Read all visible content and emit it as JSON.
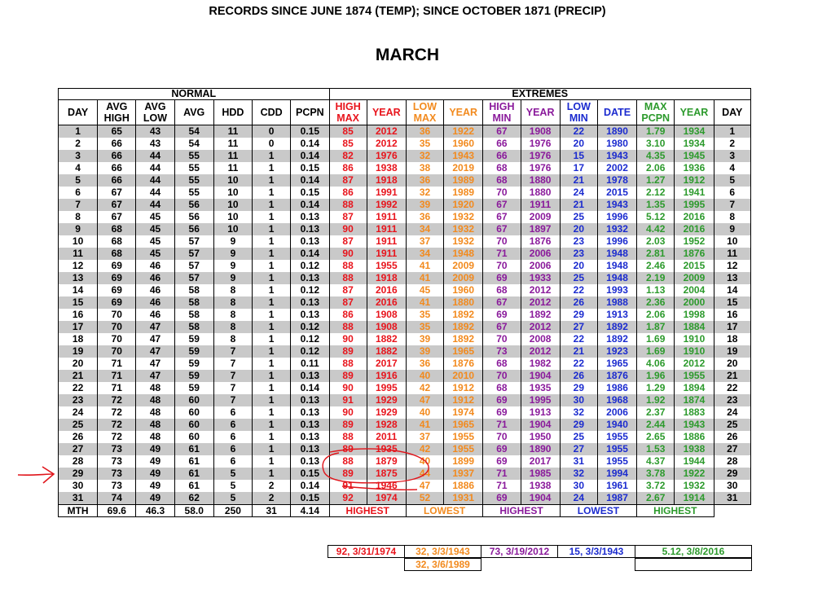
{
  "header": {
    "title": "RECORDS SINCE JUNE 1874 (TEMP); SINCE OCTOBER 1871 (PRECIP)",
    "month": "MARCH"
  },
  "groups": {
    "normal": "NORMAL",
    "extremes": "EXTREMES"
  },
  "columns": {
    "day": "DAY",
    "avg_high": [
      "AVG",
      "HIGH"
    ],
    "avg_low": [
      "AVG",
      "LOW"
    ],
    "avg": "AVG",
    "hdd": "HDD",
    "cdd": "CDD",
    "pcpn": "PCPN",
    "high_max": [
      "HIGH",
      "MAX"
    ],
    "year1": "YEAR",
    "low_max": [
      "LOW",
      "MAX"
    ],
    "year2": "YEAR",
    "high_min": [
      "HIGH",
      "MIN"
    ],
    "year3": "YEAR",
    "low_min": [
      "LOW",
      "MIN"
    ],
    "date": "DATE",
    "max_pcpn": [
      "MAX",
      "PCPN"
    ],
    "year4": "YEAR",
    "day2": "DAY"
  },
  "rows": [
    [
      "1",
      "65",
      "43",
      "54",
      "11",
      "0",
      "0.15",
      "85",
      "2012",
      "36",
      "1922",
      "67",
      "1908",
      "22",
      "1890",
      "1.79",
      "1934",
      "1"
    ],
    [
      "2",
      "66",
      "43",
      "54",
      "11",
      "0",
      "0.14",
      "85",
      "2012",
      "35",
      "1960",
      "66",
      "1976",
      "20",
      "1980",
      "3.10",
      "1934",
      "2"
    ],
    [
      "3",
      "66",
      "44",
      "55",
      "11",
      "1",
      "0.14",
      "82",
      "1976",
      "32",
      "1943",
      "66",
      "1976",
      "15",
      "1943",
      "4.35",
      "1945",
      "3"
    ],
    [
      "4",
      "66",
      "44",
      "55",
      "11",
      "1",
      "0.15",
      "86",
      "1938",
      "38",
      "2019",
      "68",
      "1976",
      "17",
      "2002",
      "2.06",
      "1936",
      "4"
    ],
    [
      "5",
      "66",
      "44",
      "55",
      "10",
      "1",
      "0.14",
      "87",
      "1918",
      "36",
      "1989",
      "68",
      "1880",
      "21",
      "1978",
      "1.27",
      "1912",
      "5"
    ],
    [
      "6",
      "67",
      "44",
      "55",
      "10",
      "1",
      "0.15",
      "86",
      "1991",
      "32",
      "1989",
      "70",
      "1880",
      "24",
      "2015",
      "2.12",
      "1941",
      "6"
    ],
    [
      "7",
      "67",
      "44",
      "56",
      "10",
      "1",
      "0.14",
      "88",
      "1992",
      "39",
      "1920",
      "67",
      "1911",
      "21",
      "1943",
      "1.35",
      "1995",
      "7"
    ],
    [
      "8",
      "67",
      "45",
      "56",
      "10",
      "1",
      "0.13",
      "87",
      "1911",
      "36",
      "1932",
      "67",
      "2009",
      "25",
      "1996",
      "5.12",
      "2016",
      "8"
    ],
    [
      "9",
      "68",
      "45",
      "56",
      "10",
      "1",
      "0.13",
      "90",
      "1911",
      "34",
      "1932",
      "67",
      "1897",
      "20",
      "1932",
      "4.42",
      "2016",
      "9"
    ],
    [
      "10",
      "68",
      "45",
      "57",
      "9",
      "1",
      "0.13",
      "87",
      "1911",
      "37",
      "1932",
      "70",
      "1876",
      "23",
      "1996",
      "2.03",
      "1952",
      "10"
    ],
    [
      "11",
      "68",
      "45",
      "57",
      "9",
      "1",
      "0.14",
      "90",
      "1911",
      "34",
      "1948",
      "71",
      "2006",
      "23",
      "1948",
      "2.81",
      "1876",
      "11"
    ],
    [
      "12",
      "69",
      "46",
      "57",
      "9",
      "1",
      "0.12",
      "88",
      "1955",
      "41",
      "2009",
      "70",
      "2006",
      "20",
      "1948",
      "2.46",
      "2015",
      "12"
    ],
    [
      "13",
      "69",
      "46",
      "57",
      "9",
      "1",
      "0.13",
      "88",
      "1918",
      "41",
      "2009",
      "69",
      "1933",
      "25",
      "1948",
      "2.19",
      "2009",
      "13"
    ],
    [
      "14",
      "69",
      "46",
      "58",
      "8",
      "1",
      "0.12",
      "87",
      "2016",
      "45",
      "1960",
      "68",
      "2012",
      "22",
      "1993",
      "1.13",
      "2004",
      "14"
    ],
    [
      "15",
      "69",
      "46",
      "58",
      "8",
      "1",
      "0.13",
      "87",
      "2016",
      "41",
      "1880",
      "67",
      "2012",
      "26",
      "1988",
      "2.36",
      "2000",
      "15"
    ],
    [
      "16",
      "70",
      "46",
      "58",
      "8",
      "1",
      "0.13",
      "86",
      "1908",
      "35",
      "1892",
      "69",
      "1892",
      "29",
      "1913",
      "2.06",
      "1998",
      "16"
    ],
    [
      "17",
      "70",
      "47",
      "58",
      "8",
      "1",
      "0.12",
      "88",
      "1908",
      "35",
      "1892",
      "67",
      "2012",
      "27",
      "1892",
      "1.87",
      "1884",
      "17"
    ],
    [
      "18",
      "70",
      "47",
      "59",
      "8",
      "1",
      "0.12",
      "90",
      "1882",
      "39",
      "1892",
      "70",
      "2008",
      "22",
      "1892",
      "1.69",
      "1910",
      "18"
    ],
    [
      "19",
      "70",
      "47",
      "59",
      "7",
      "1",
      "0.12",
      "89",
      "1882",
      "39",
      "1965",
      "73",
      "2012",
      "21",
      "1923",
      "1.69",
      "1910",
      "19"
    ],
    [
      "20",
      "71",
      "47",
      "59",
      "7",
      "1",
      "0.11",
      "88",
      "2017",
      "36",
      "1876",
      "68",
      "1982",
      "22",
      "1965",
      "4.06",
      "2012",
      "20"
    ],
    [
      "21",
      "71",
      "47",
      "59",
      "7",
      "1",
      "0.13",
      "89",
      "1916",
      "40",
      "2010",
      "70",
      "1904",
      "26",
      "1876",
      "1.96",
      "1955",
      "21"
    ],
    [
      "22",
      "71",
      "48",
      "59",
      "7",
      "1",
      "0.14",
      "90",
      "1995",
      "42",
      "1912",
      "68",
      "1935",
      "29",
      "1986",
      "1.29",
      "1894",
      "22"
    ],
    [
      "23",
      "72",
      "48",
      "60",
      "7",
      "1",
      "0.13",
      "91",
      "1929",
      "47",
      "1912",
      "69",
      "1995",
      "30",
      "1968",
      "1.92",
      "1874",
      "23"
    ],
    [
      "24",
      "72",
      "48",
      "60",
      "6",
      "1",
      "0.13",
      "90",
      "1929",
      "40",
      "1974",
      "69",
      "1913",
      "32",
      "2006",
      "2.37",
      "1883",
      "24"
    ],
    [
      "25",
      "72",
      "48",
      "60",
      "6",
      "1",
      "0.13",
      "89",
      "1928",
      "41",
      "1965",
      "71",
      "1904",
      "29",
      "1940",
      "2.44",
      "1943",
      "25"
    ],
    [
      "26",
      "72",
      "48",
      "60",
      "6",
      "1",
      "0.13",
      "88",
      "2011",
      "37",
      "1955",
      "70",
      "1950",
      "25",
      "1955",
      "2.65",
      "1886",
      "26"
    ],
    [
      "27",
      "73",
      "49",
      "61",
      "6",
      "1",
      "0.13",
      "89",
      "1935",
      "42",
      "1955",
      "69",
      "1890",
      "27",
      "1955",
      "1.53",
      "1938",
      "27"
    ],
    [
      "28",
      "73",
      "49",
      "61",
      "6",
      "1",
      "0.13",
      "88",
      "1879",
      "40",
      "1899",
      "69",
      "2017",
      "31",
      "1955",
      "4.37",
      "1944",
      "28"
    ],
    [
      "29",
      "73",
      "49",
      "61",
      "5",
      "1",
      "0.15",
      "89",
      "1875",
      "44",
      "1937",
      "71",
      "1985",
      "32",
      "1994",
      "3.78",
      "1922",
      "29"
    ],
    [
      "30",
      "73",
      "49",
      "61",
      "5",
      "2",
      "0.14",
      "91",
      "1946",
      "47",
      "1886",
      "71",
      "1938",
      "30",
      "1961",
      "3.72",
      "1932",
      "30"
    ],
    [
      "31",
      "74",
      "49",
      "62",
      "5",
      "2",
      "0.15",
      "92",
      "1974",
      "52",
      "1931",
      "69",
      "1904",
      "24",
      "1987",
      "2.67",
      "1914",
      "31"
    ]
  ],
  "monthly": {
    "label": "MTH",
    "avg_high": "69.6",
    "avg_low": "46.3",
    "avg": "58.0",
    "hdd": "250",
    "cdd": "31",
    "pcpn": "4.14"
  },
  "extremes_summary": {
    "highest_max": {
      "label": "HIGHEST",
      "value": "92, 3/31/1974"
    },
    "lowest_max": {
      "label": "LOWEST",
      "values": [
        "32, 3/3/1943",
        "32, 3/6/1989"
      ]
    },
    "highest_min": {
      "label": "HIGHEST",
      "value": "73, 3/19/2012"
    },
    "lowest_min": {
      "label": "LOWEST",
      "value": "15, 3/3/1943"
    },
    "max_pcpn": {
      "label": "HIGHEST",
      "value": "5.12, 3/8/2016"
    }
  },
  "colors": {
    "black": "#000000",
    "red": "#e8141c",
    "orange": "#f28a1e",
    "purple": "#8a1a9b",
    "blue": "#1b2bcf",
    "green": "#2c9a2c",
    "stripe": "#c9c9c9",
    "annotation": "#e0151b"
  },
  "annotations": {
    "arrow_row_day": "27",
    "circled_rows": [
      "26",
      "27"
    ],
    "underline_row": "28"
  }
}
